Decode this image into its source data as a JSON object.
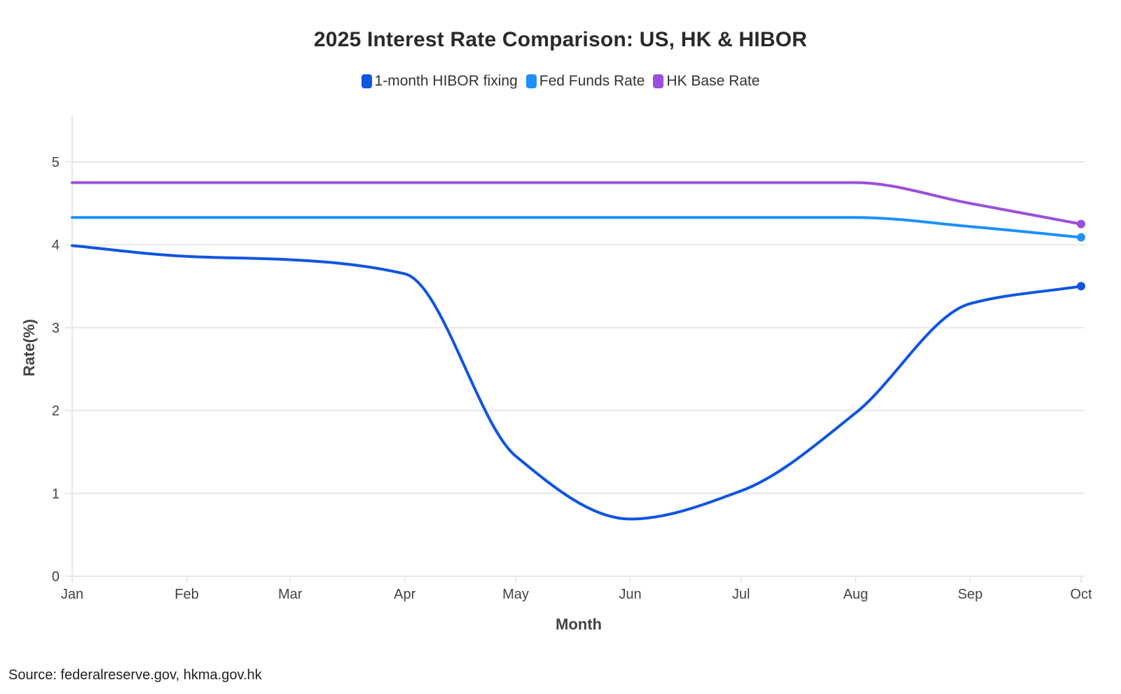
{
  "chart_data": {
    "type": "line",
    "title": "2025 Interest Rate Comparison: US, HK & HIBOR",
    "xlabel": "Month",
    "ylabel": "Rate(%)",
    "categories": [
      "Jan",
      "Feb",
      "Mar",
      "Apr",
      "May",
      "Jun",
      "Jul",
      "Aug",
      "Sep",
      "Oct"
    ],
    "x_day_of_year": [
      0,
      31,
      59,
      90,
      120,
      151,
      181,
      212,
      243,
      273
    ],
    "ylim": [
      0,
      5.56
    ],
    "yticks": [
      0,
      1,
      2,
      3,
      4,
      5
    ],
    "grid": true,
    "legend_position": "top-center",
    "series": [
      {
        "name": "1-month HIBOR fixing",
        "color": "#0f55e0",
        "values": [
          3.99,
          3.86,
          3.82,
          3.65,
          1.45,
          0.69,
          1.03,
          1.97,
          3.29,
          3.5
        ]
      },
      {
        "name": "Fed Funds Rate",
        "color": "#1e90ff",
        "values": [
          4.33,
          4.33,
          4.33,
          4.33,
          4.33,
          4.33,
          4.33,
          4.33,
          4.22,
          4.09
        ]
      },
      {
        "name": "HK Base Rate",
        "color": "#9b4fdc",
        "values": [
          4.75,
          4.75,
          4.75,
          4.75,
          4.75,
          4.75,
          4.75,
          4.75,
          4.5,
          4.25
        ]
      }
    ],
    "source": "Source: federalreserve.gov, hkma.gov.hk"
  }
}
